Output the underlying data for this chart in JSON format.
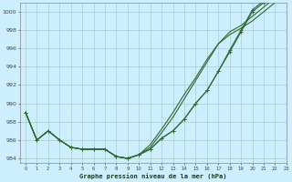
{
  "title": "Graphe pression niveau de la mer (hPa)",
  "bg_color": "#cceeff",
  "grid_color": "#aacccc",
  "line_color": "#2d6a2d",
  "x_min": 0,
  "x_max": 23,
  "y_min": 983.5,
  "y_max": 1001.0,
  "yticks": [
    984,
    986,
    988,
    990,
    992,
    994,
    996,
    998,
    1000
  ],
  "xticks": [
    0,
    1,
    2,
    3,
    4,
    5,
    6,
    7,
    8,
    9,
    10,
    11,
    12,
    13,
    14,
    15,
    16,
    17,
    18,
    19,
    20,
    21,
    22,
    23
  ],
  "y_main": [
    989.0,
    986.0,
    987.0,
    986.0,
    985.2,
    985.0,
    985.0,
    985.0,
    984.2,
    984.0,
    984.4,
    985.0,
    986.2,
    987.0,
    988.3,
    990.0,
    991.4,
    993.5,
    995.6,
    997.8,
    1000.0,
    1001.0,
    1002.0
  ],
  "y_line2": [
    989.0,
    986.0,
    987.0,
    986.0,
    985.2,
    985.0,
    985.0,
    985.0,
    984.2,
    984.0,
    984.4,
    985.2,
    986.8,
    988.5,
    990.5,
    992.5,
    994.5,
    996.5,
    997.5,
    998.2,
    999.0,
    1000.0,
    1001.0
  ],
  "y_line3": [
    989.0,
    986.0,
    987.0,
    986.0,
    985.2,
    985.0,
    985.0,
    985.0,
    984.2,
    984.0,
    984.4,
    985.5,
    987.2,
    989.0,
    991.0,
    992.8,
    994.8,
    996.5,
    997.8,
    998.5,
    999.5,
    1000.5,
    1001.5
  ],
  "y_line4": [
    989.0,
    986.0,
    987.0,
    986.0,
    985.2,
    985.0,
    985.0,
    985.0,
    984.2,
    984.0,
    984.4,
    985.0,
    986.2,
    987.0,
    988.3,
    990.0,
    991.4,
    993.5,
    995.8,
    998.0,
    1000.2,
    1001.2,
    1002.2
  ]
}
